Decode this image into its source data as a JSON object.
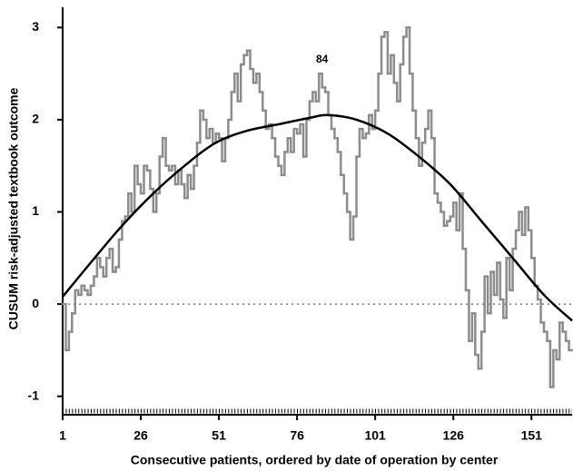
{
  "chart_data": {
    "type": "line",
    "x_label": "Consecutive patients, ordered by date of operation by center",
    "y_label": "CUSUM risk-adjusted textbook outcome",
    "xlim": [
      1,
      164
    ],
    "ylim": [
      -1.2,
      3.2
    ],
    "xticks": [
      1,
      26,
      51,
      76,
      101,
      126,
      151
    ],
    "yticks": [
      -1,
      0,
      1,
      2,
      3
    ],
    "reference_line": 0,
    "annotations": [
      {
        "text": "84",
        "x": 84,
        "y": 2.65
      }
    ],
    "series": [
      {
        "name": "CUSUM",
        "style": "step",
        "color": "#8c8c8c",
        "x": [
          1,
          2,
          3,
          4,
          5,
          6,
          7,
          8,
          9,
          10,
          11,
          12,
          13,
          14,
          15,
          16,
          17,
          18,
          19,
          20,
          21,
          22,
          23,
          24,
          25,
          26,
          27,
          28,
          29,
          30,
          31,
          32,
          33,
          34,
          35,
          36,
          37,
          38,
          39,
          40,
          41,
          42,
          43,
          44,
          45,
          46,
          47,
          48,
          49,
          50,
          51,
          52,
          53,
          54,
          55,
          56,
          57,
          58,
          59,
          60,
          61,
          62,
          63,
          64,
          65,
          66,
          67,
          68,
          69,
          70,
          71,
          72,
          73,
          74,
          75,
          76,
          77,
          78,
          79,
          80,
          81,
          82,
          83,
          84,
          85,
          86,
          87,
          88,
          89,
          90,
          91,
          92,
          93,
          94,
          95,
          96,
          97,
          98,
          99,
          100,
          101,
          102,
          103,
          104,
          105,
          106,
          107,
          108,
          109,
          110,
          111,
          112,
          113,
          114,
          115,
          116,
          117,
          118,
          119,
          120,
          121,
          122,
          123,
          124,
          125,
          126,
          127,
          128,
          129,
          130,
          131,
          132,
          133,
          134,
          135,
          136,
          137,
          138,
          139,
          140,
          141,
          142,
          143,
          144,
          145,
          146,
          147,
          148,
          149,
          150,
          151,
          152,
          153,
          154,
          155,
          156,
          157,
          158,
          159,
          160,
          161,
          162,
          163
        ],
        "values": [
          0,
          -0.5,
          -0.3,
          -0.1,
          0.15,
          0.1,
          0.2,
          0.15,
          0.1,
          0.2,
          0.3,
          0.5,
          0.4,
          0.3,
          0.5,
          0.6,
          0.35,
          0.4,
          0.7,
          0.9,
          0.95,
          1.2,
          1.0,
          1.5,
          1.3,
          1.2,
          1.5,
          1.45,
          1.25,
          1.0,
          1.2,
          1.6,
          1.8,
          1.5,
          1.45,
          1.5,
          1.3,
          1.45,
          1.3,
          1.15,
          1.4,
          1.25,
          1.5,
          1.75,
          2.1,
          2.0,
          1.8,
          1.9,
          1.75,
          1.85,
          1.8,
          1.55,
          1.8,
          2.0,
          2.3,
          2.5,
          2.2,
          2.6,
          2.7,
          2.75,
          2.55,
          2.4,
          2.5,
          2.3,
          2.1,
          1.9,
          1.95,
          1.8,
          1.6,
          1.5,
          1.4,
          1.65,
          1.8,
          1.65,
          1.9,
          1.85,
          1.95,
          1.6,
          2.0,
          2.2,
          2.3,
          2.2,
          2.5,
          2.35,
          2.3,
          2.05,
          1.9,
          1.8,
          1.65,
          1.4,
          1.2,
          1.0,
          0.7,
          0.95,
          1.6,
          1.9,
          1.8,
          1.85,
          2.05,
          1.9,
          2.1,
          2.5,
          2.9,
          2.95,
          2.5,
          2.7,
          2.4,
          2.2,
          2.6,
          2.9,
          3.0,
          2.5,
          2.1,
          1.8,
          1.5,
          1.75,
          1.9,
          2.1,
          1.8,
          1.2,
          1.1,
          1.0,
          0.85,
          0.9,
          0.95,
          1.1,
          0.8,
          1.2,
          0.6,
          0.15,
          -0.4,
          -0.1,
          -0.55,
          -0.7,
          -0.3,
          0.3,
          -0.1,
          0.35,
          0.1,
          0.45,
          0.05,
          -0.15,
          0.5,
          0.15,
          0.6,
          0.8,
          1.0,
          0.75,
          1.05,
          0.8,
          0.5,
          0.2,
          0.05,
          -0.2,
          -0.3,
          -0.4,
          -0.9,
          -0.5,
          -0.6,
          -0.2,
          -0.3,
          -0.4,
          -0.5
        ]
      },
      {
        "name": "Trend",
        "style": "smooth",
        "color": "#000000",
        "x": [
          1,
          10,
          20,
          30,
          40,
          50,
          60,
          70,
          80,
          86,
          95,
          105,
          115,
          125,
          135,
          145,
          155,
          164
        ],
        "values": [
          0.08,
          0.45,
          0.85,
          1.2,
          1.5,
          1.75,
          1.88,
          1.95,
          2.02,
          2.05,
          2.0,
          1.85,
          1.6,
          1.3,
          0.9,
          0.5,
          0.1,
          -0.18
        ]
      }
    ]
  }
}
